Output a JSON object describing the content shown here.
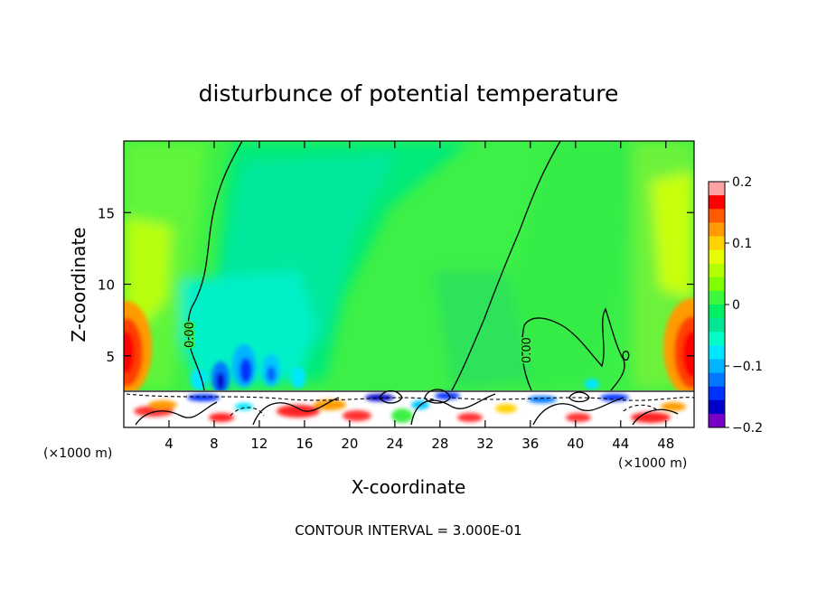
{
  "chart_data": {
    "type": "heatmap",
    "title": "disturbunce of potential temperature",
    "xlabel": "X-coordinate",
    "ylabel": "Z-coordinate",
    "x_unit": "(×1000 m)",
    "x_unit_right": "(×1000 m)",
    "xlim": [
      0,
      50.5
    ],
    "ylim": [
      0,
      20
    ],
    "x_ticks": [
      4,
      8,
      12,
      16,
      20,
      24,
      28,
      32,
      36,
      40,
      44,
      48
    ],
    "x_tick_labels": [
      "4",
      "8",
      "12",
      "16",
      "20",
      "24",
      "28",
      "32",
      "36",
      "40",
      "44",
      "48"
    ],
    "y_ticks": [
      5,
      10,
      15
    ],
    "y_tick_labels": [
      "5",
      "10",
      "15"
    ],
    "colorbar": {
      "min": -0.2,
      "max": 0.2,
      "tick_values": [
        0.2,
        0.1,
        0,
        -0.1,
        -0.2
      ],
      "tick_labels": [
        "0.2",
        "0.1",
        "0",
        "−0.1",
        "−0.2"
      ],
      "colors": [
        "#fea3a3",
        "#ff0000",
        "#ff5a00",
        "#ff9b00",
        "#ffd200",
        "#e6ff00",
        "#b3ff00",
        "#7dff00",
        "#3cf83c",
        "#00f064",
        "#00e696",
        "#00ffc8",
        "#00e6ff",
        "#00b4ff",
        "#0078ff",
        "#0032ff",
        "#0000c8",
        "#7800c8"
      ]
    },
    "contour_labels": [
      "0.00",
      "0.00"
    ],
    "contour_interval": 0.3,
    "footer": "CONTOUR INTERVAL = 3.000E-01"
  }
}
